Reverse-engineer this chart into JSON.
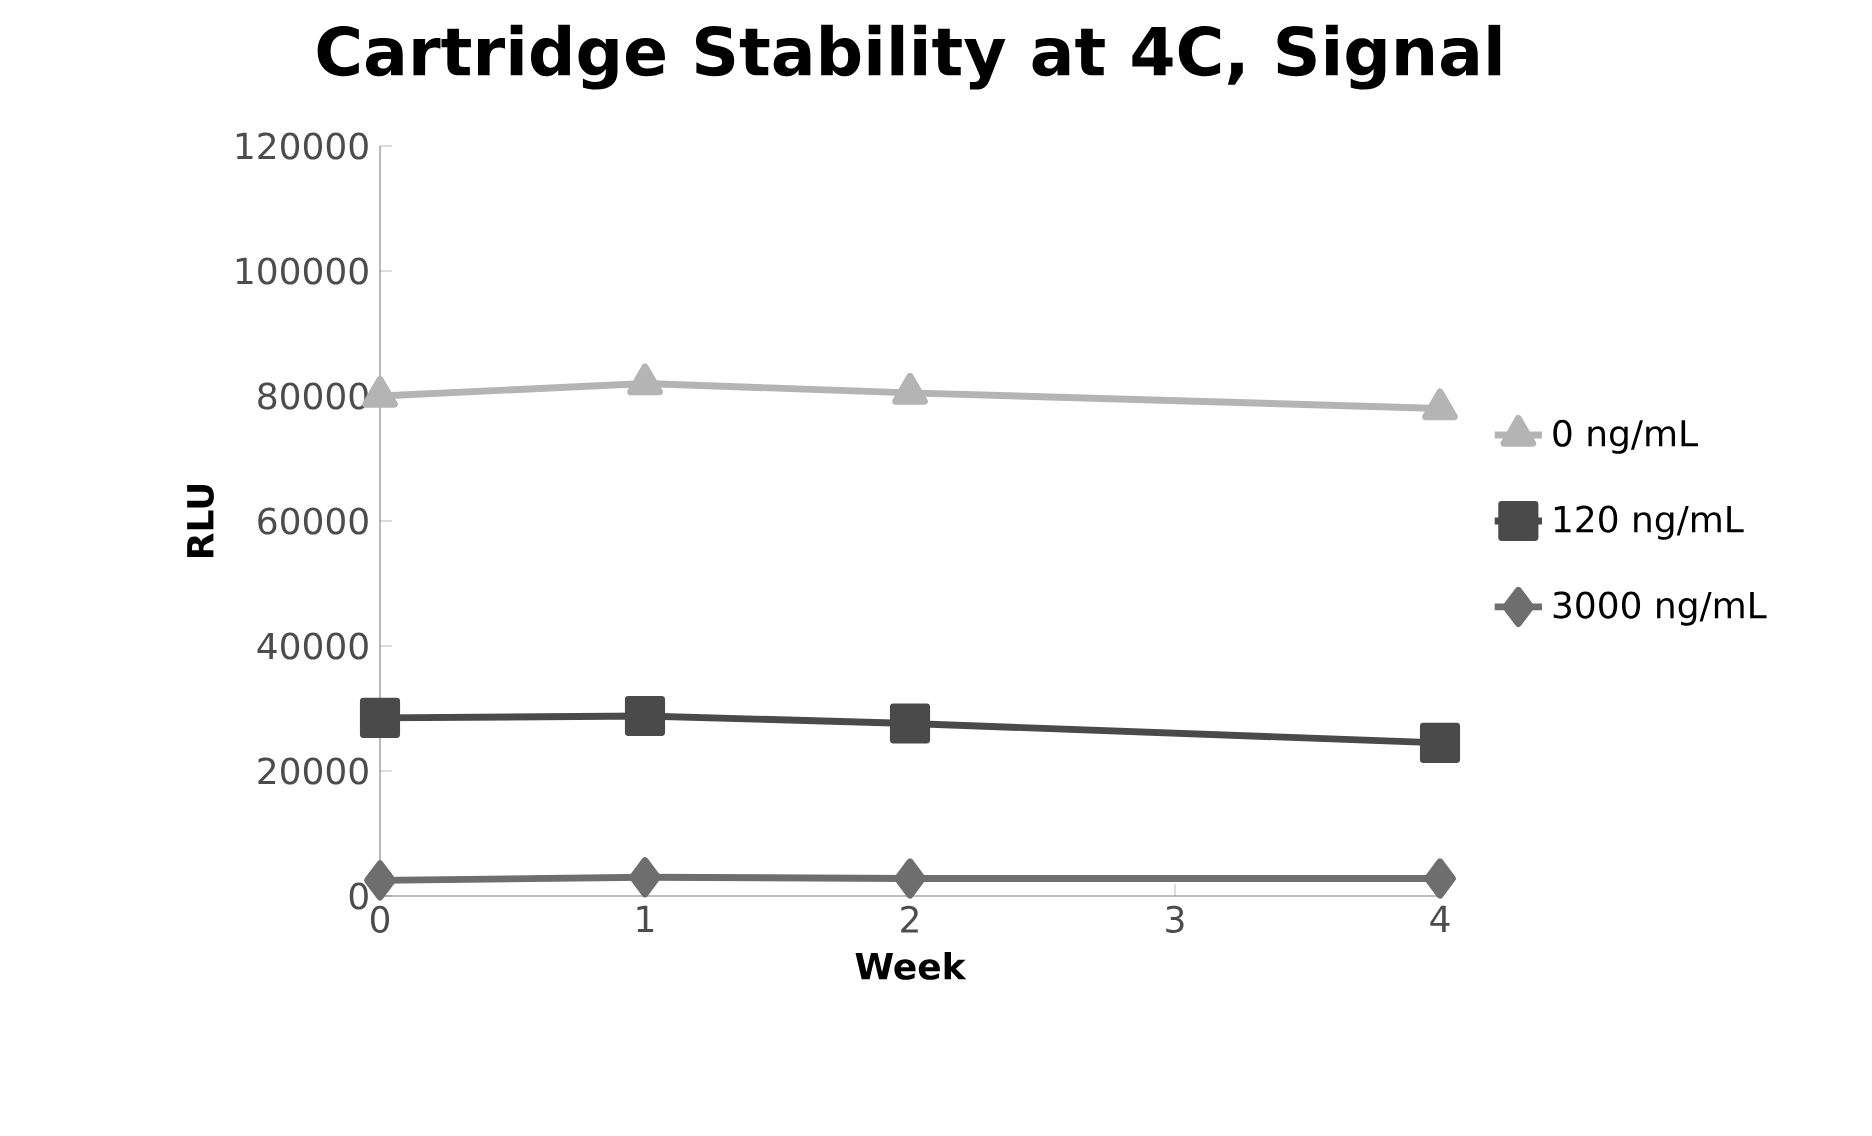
{
  "chart_data": {
    "type": "line",
    "title": "Cartridge Stability at 4C, Signal",
    "xlabel": "Week",
    "ylabel": "RLU",
    "x": [
      0,
      1,
      2,
      4
    ],
    "series": [
      {
        "name": "0 ng/mL",
        "color": "#b4b4b4",
        "marker": "triangle",
        "values": [
          80000,
          82000,
          80500,
          78000
        ]
      },
      {
        "name": "120 ng/mL",
        "color": "#4a4a4a",
        "marker": "square",
        "values": [
          28500,
          28800,
          27600,
          24500
        ]
      },
      {
        "name": "3000 ng/mL",
        "color": "#6e6e6e",
        "marker": "diamond",
        "values": [
          2500,
          3000,
          2800,
          2800
        ]
      }
    ],
    "xlim": [
      0,
      4
    ],
    "xticks": [
      0,
      1,
      2,
      3,
      4
    ],
    "ylim": [
      0,
      120000
    ],
    "yticks": [
      0,
      20000,
      40000,
      60000,
      80000,
      100000,
      120000
    ],
    "grid": false,
    "legend": "right",
    "line_style": "solid"
  }
}
